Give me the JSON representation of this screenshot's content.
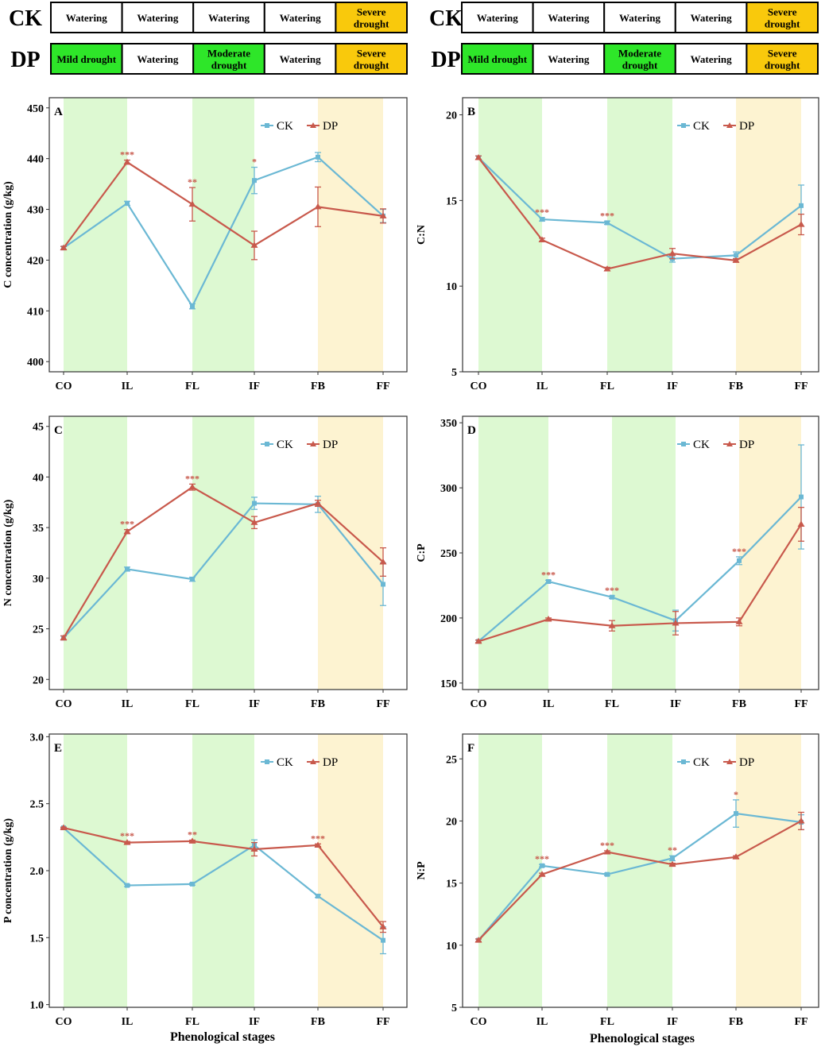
{
  "colors": {
    "ck": "#6BB8D4",
    "dp": "#C8594C",
    "drought_green": "#DDF9D2",
    "drought_yellow": "#FDF3D1",
    "cell_green": "#2EE629",
    "cell_yellow": "#F9C90C",
    "cell_white": "#ffffff"
  },
  "treatments": [
    {
      "label": "CK",
      "cells": [
        {
          "text": "Watering",
          "color": "white"
        },
        {
          "text": "Watering",
          "color": "white"
        },
        {
          "text": "Watering",
          "color": "white"
        },
        {
          "text": "Watering",
          "color": "white"
        },
        {
          "text": "Severe drought",
          "color": "yellow"
        }
      ]
    },
    {
      "label": "DP",
      "cells": [
        {
          "text": "Mild drought",
          "color": "green"
        },
        {
          "text": "Watering",
          "color": "white"
        },
        {
          "text": "Moderate drought",
          "color": "green"
        },
        {
          "text": "Watering",
          "color": "white"
        },
        {
          "text": "Severe drought",
          "color": "yellow"
        }
      ]
    }
  ],
  "shaded_stages": [
    {
      "stage_index": 0,
      "color": "green"
    },
    {
      "stage_index": 2,
      "color": "green"
    },
    {
      "stage_index": 4,
      "color": "yellow"
    }
  ],
  "x_axis_title": "Phenological stages",
  "chart_data": [
    {
      "panel": "A",
      "type": "line",
      "ylabel": "C concentration (g/kg)",
      "categories": [
        "CO",
        "IL",
        "FL",
        "IF",
        "FB",
        "FF"
      ],
      "ylim": [
        398,
        452
      ],
      "yticks": [
        400,
        410,
        420,
        430,
        440,
        450
      ],
      "legend": [
        "CK",
        "DP"
      ],
      "series": [
        {
          "name": "CK",
          "values": [
            422.4,
            431.2,
            410.9,
            435.7,
            440.3,
            428.7
          ],
          "errors": [
            0.3,
            0.4,
            0.5,
            2.6,
            0.9,
            1.3
          ]
        },
        {
          "name": "DP",
          "values": [
            422.4,
            439.3,
            431.0,
            422.9,
            430.5,
            428.7
          ],
          "errors": [
            0.3,
            0.4,
            3.3,
            2.8,
            3.9,
            1.4
          ]
        }
      ],
      "significance": [
        {
          "stage_index": 1,
          "label": "***"
        },
        {
          "stage_index": 2,
          "label": "**"
        },
        {
          "stage_index": 3,
          "label": "*"
        }
      ]
    },
    {
      "panel": "B",
      "type": "line",
      "ylabel": "C:N",
      "categories": [
        "CO",
        "IL",
        "FL",
        "IF",
        "FB",
        "FF"
      ],
      "ylim": [
        5,
        21
      ],
      "yticks": [
        5,
        10,
        15,
        20
      ],
      "legend": [
        "CK",
        "DP"
      ],
      "series": [
        {
          "name": "CK",
          "values": [
            17.5,
            13.9,
            13.7,
            11.6,
            11.8,
            14.7
          ],
          "errors": [
            0.1,
            0.1,
            0.1,
            0.2,
            0.2,
            1.2
          ]
        },
        {
          "name": "DP",
          "values": [
            17.5,
            12.7,
            11.0,
            11.9,
            11.5,
            13.6
          ],
          "errors": [
            0.1,
            0.1,
            0.1,
            0.3,
            0.1,
            0.6
          ]
        }
      ],
      "significance": [
        {
          "stage_index": 1,
          "label": "***"
        },
        {
          "stage_index": 2,
          "label": "***"
        }
      ]
    },
    {
      "panel": "C",
      "type": "line",
      "ylabel": "N concentration (g/kg)",
      "categories": [
        "CO",
        "IL",
        "FL",
        "IF",
        "FB",
        "FF"
      ],
      "ylim": [
        19,
        46
      ],
      "yticks": [
        20,
        25,
        30,
        35,
        40,
        45
      ],
      "legend": [
        "CK",
        "DP"
      ],
      "series": [
        {
          "name": "CK",
          "values": [
            24.1,
            30.9,
            29.9,
            37.4,
            37.3,
            29.4
          ],
          "errors": [
            0.2,
            0.2,
            0.2,
            0.6,
            0.8,
            2.1
          ]
        },
        {
          "name": "DP",
          "values": [
            24.1,
            34.6,
            39.0,
            35.5,
            37.4,
            31.6
          ],
          "errors": [
            0.2,
            0.2,
            0.3,
            0.6,
            0.3,
            1.4
          ]
        }
      ],
      "significance": [
        {
          "stage_index": 1,
          "label": "***"
        },
        {
          "stage_index": 2,
          "label": "***"
        }
      ]
    },
    {
      "panel": "D",
      "type": "line",
      "ylabel": "C:P",
      "categories": [
        "CO",
        "IL",
        "FL",
        "IF",
        "FB",
        "FF"
      ],
      "ylim": [
        145,
        355
      ],
      "yticks": [
        150,
        200,
        250,
        300,
        350
      ],
      "legend": [
        "CK",
        "DP"
      ],
      "series": [
        {
          "name": "CK",
          "values": [
            182,
            228,
            216,
            198,
            244,
            293
          ],
          "errors": [
            1,
            1,
            1,
            8,
            3,
            40
          ]
        },
        {
          "name": "DP",
          "values": [
            182,
            199,
            194,
            196,
            197,
            272
          ],
          "errors": [
            1,
            1,
            4,
            9,
            3,
            13
          ]
        }
      ],
      "significance": [
        {
          "stage_index": 1,
          "label": "***"
        },
        {
          "stage_index": 2,
          "label": "***"
        },
        {
          "stage_index": 4,
          "label": "***"
        }
      ]
    },
    {
      "panel": "E",
      "type": "line",
      "ylabel": "P concentration (g/kg)",
      "categories": [
        "CO",
        "IL",
        "FL",
        "IF",
        "FB",
        "FF"
      ],
      "ylim": [
        0.98,
        3.02
      ],
      "yticks": [
        1.0,
        1.5,
        2.0,
        2.5,
        3.0
      ],
      "legend": [
        "CK",
        "DP"
      ],
      "series": [
        {
          "name": "CK",
          "values": [
            2.32,
            1.89,
            1.9,
            2.19,
            1.81,
            1.48
          ],
          "errors": [
            0.005,
            0.008,
            0.008,
            0.04,
            0.01,
            0.1
          ]
        },
        {
          "name": "DP",
          "values": [
            2.32,
            2.21,
            2.22,
            2.16,
            2.19,
            1.58
          ],
          "errors": [
            0.005,
            0.008,
            0.008,
            0.05,
            0.01,
            0.04
          ]
        }
      ],
      "significance": [
        {
          "stage_index": 1,
          "label": "***"
        },
        {
          "stage_index": 2,
          "label": "**"
        },
        {
          "stage_index": 4,
          "label": "***"
        }
      ]
    },
    {
      "panel": "F",
      "type": "line",
      "ylabel": "N:P",
      "categories": [
        "CO",
        "IL",
        "FL",
        "IF",
        "FB",
        "FF"
      ],
      "ylim": [
        5,
        27
      ],
      "yticks": [
        5,
        10,
        15,
        20,
        25
      ],
      "legend": [
        "CK",
        "DP"
      ],
      "series": [
        {
          "name": "CK",
          "values": [
            10.4,
            16.4,
            15.7,
            17.0,
            20.6,
            19.9
          ],
          "errors": [
            0.1,
            0.1,
            0.1,
            0.2,
            1.1,
            0.6
          ]
        },
        {
          "name": "DP",
          "values": [
            10.4,
            15.7,
            17.5,
            16.5,
            17.1,
            20.0
          ],
          "errors": [
            0.1,
            0.1,
            0.1,
            0.1,
            0.1,
            0.7
          ]
        }
      ],
      "significance": [
        {
          "stage_index": 1,
          "label": "***"
        },
        {
          "stage_index": 2,
          "label": "***"
        },
        {
          "stage_index": 3,
          "label": "**"
        },
        {
          "stage_index": 4,
          "label": "*"
        }
      ]
    }
  ]
}
